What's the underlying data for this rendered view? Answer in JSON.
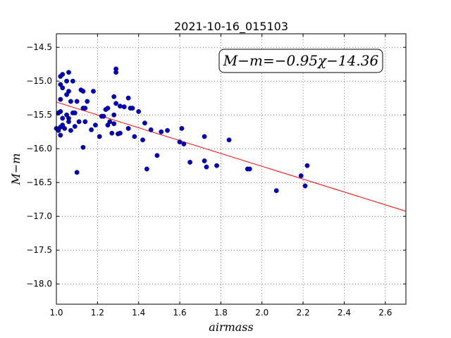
{
  "chart_data": {
    "type": "scatter",
    "title": "2021-10-16_015103",
    "xlabel": "airmass",
    "ylabel": "M−m",
    "xlim": [
      1.0,
      2.7
    ],
    "ylim": [
      -18.3,
      -14.3
    ],
    "x_ticks": [
      1.0,
      1.2,
      1.4,
      1.6,
      1.8,
      2.0,
      2.2,
      2.4,
      2.6
    ],
    "x_tick_labels": [
      "1.0",
      "1.2",
      "1.4",
      "1.6",
      "1.8",
      "2.0",
      "2.2",
      "2.4",
      "2.6"
    ],
    "y_ticks": [
      -14.5,
      -15.0,
      -15.5,
      -16.0,
      -16.5,
      -17.0,
      -17.5,
      -18.0
    ],
    "y_tick_labels": [
      "−14.5",
      "−15.0",
      "−15.5",
      "−16.0",
      "−16.5",
      "−17.0",
      "−17.5",
      "−18.0"
    ],
    "grid": true,
    "annotation": "M−m=−0.95χ−14.36",
    "fit": {
      "slope": -0.95,
      "intercept": -14.36,
      "color": "#ff0000"
    },
    "point_color": "#0000cc",
    "points": [
      [
        1.0,
        -15.7
      ],
      [
        1.01,
        -15.47
      ],
      [
        1.02,
        -15.45
      ],
      [
        1.02,
        -15.68
      ],
      [
        1.01,
        -15.73
      ],
      [
        1.02,
        -15.8
      ],
      [
        1.02,
        -15.05
      ],
      [
        1.02,
        -14.93
      ],
      [
        1.03,
        -14.9
      ],
      [
        1.03,
        -15.1
      ],
      [
        1.02,
        -15.27
      ],
      [
        1.03,
        -15.55
      ],
      [
        1.03,
        -15.65
      ],
      [
        1.04,
        -15.7
      ],
      [
        1.05,
        -15.0
      ],
      [
        1.05,
        -15.2
      ],
      [
        1.06,
        -15.15
      ],
      [
        1.06,
        -14.87
      ],
      [
        1.05,
        -15.5
      ],
      [
        1.06,
        -15.55
      ],
      [
        1.06,
        -15.6
      ],
      [
        1.07,
        -15.73
      ],
      [
        1.07,
        -15.3
      ],
      [
        1.08,
        -15.47
      ],
      [
        1.08,
        -15.0
      ],
      [
        1.09,
        -15.67
      ],
      [
        1.09,
        -15.47
      ],
      [
        1.1,
        -15.3
      ],
      [
        1.1,
        -16.35
      ],
      [
        1.11,
        -15.6
      ],
      [
        1.12,
        -15.13
      ],
      [
        1.13,
        -15.15
      ],
      [
        1.13,
        -15.4
      ],
      [
        1.14,
        -15.4
      ],
      [
        1.14,
        -15.6
      ],
      [
        1.15,
        -15.3
      ],
      [
        1.13,
        -15.98
      ],
      [
        1.17,
        -15.72
      ],
      [
        1.18,
        -15.15
      ],
      [
        1.19,
        -15.65
      ],
      [
        1.21,
        -15.82
      ],
      [
        1.22,
        -15.52
      ],
      [
        1.23,
        -15.52
      ],
      [
        1.24,
        -15.42
      ],
      [
        1.25,
        -15.4
      ],
      [
        1.25,
        -15.65
      ],
      [
        1.26,
        -15.6
      ],
      [
        1.27,
        -15.77
      ],
      [
        1.28,
        -15.63
      ],
      [
        1.28,
        -15.5
      ],
      [
        1.28,
        -15.23
      ],
      [
        1.29,
        -15.33
      ],
      [
        1.29,
        -14.87
      ],
      [
        1.29,
        -14.82
      ],
      [
        1.3,
        -15.78
      ],
      [
        1.31,
        -15.77
      ],
      [
        1.31,
        -15.37
      ],
      [
        1.33,
        -15.38
      ],
      [
        1.35,
        -15.25
      ],
      [
        1.35,
        -15.7
      ],
      [
        1.36,
        -15.4
      ],
      [
        1.37,
        -15.4
      ],
      [
        1.38,
        -15.82
      ],
      [
        1.4,
        -15.45
      ],
      [
        1.42,
        -15.87
      ],
      [
        1.43,
        -15.62
      ],
      [
        1.44,
        -16.3
      ],
      [
        1.46,
        -15.72
      ],
      [
        1.49,
        -16.1
      ],
      [
        1.51,
        -15.75
      ],
      [
        1.54,
        -15.73
      ],
      [
        1.6,
        -15.9
      ],
      [
        1.61,
        -15.7
      ],
      [
        1.62,
        -15.93
      ],
      [
        1.65,
        -16.2
      ],
      [
        1.72,
        -15.82
      ],
      [
        1.72,
        -16.18
      ],
      [
        1.73,
        -16.27
      ],
      [
        1.78,
        -16.25
      ],
      [
        1.84,
        -15.87
      ],
      [
        1.93,
        -16.3
      ],
      [
        1.94,
        -16.3
      ],
      [
        2.07,
        -16.62
      ],
      [
        2.19,
        -16.4
      ],
      [
        2.21,
        -16.55
      ],
      [
        2.22,
        -16.25
      ]
    ]
  }
}
